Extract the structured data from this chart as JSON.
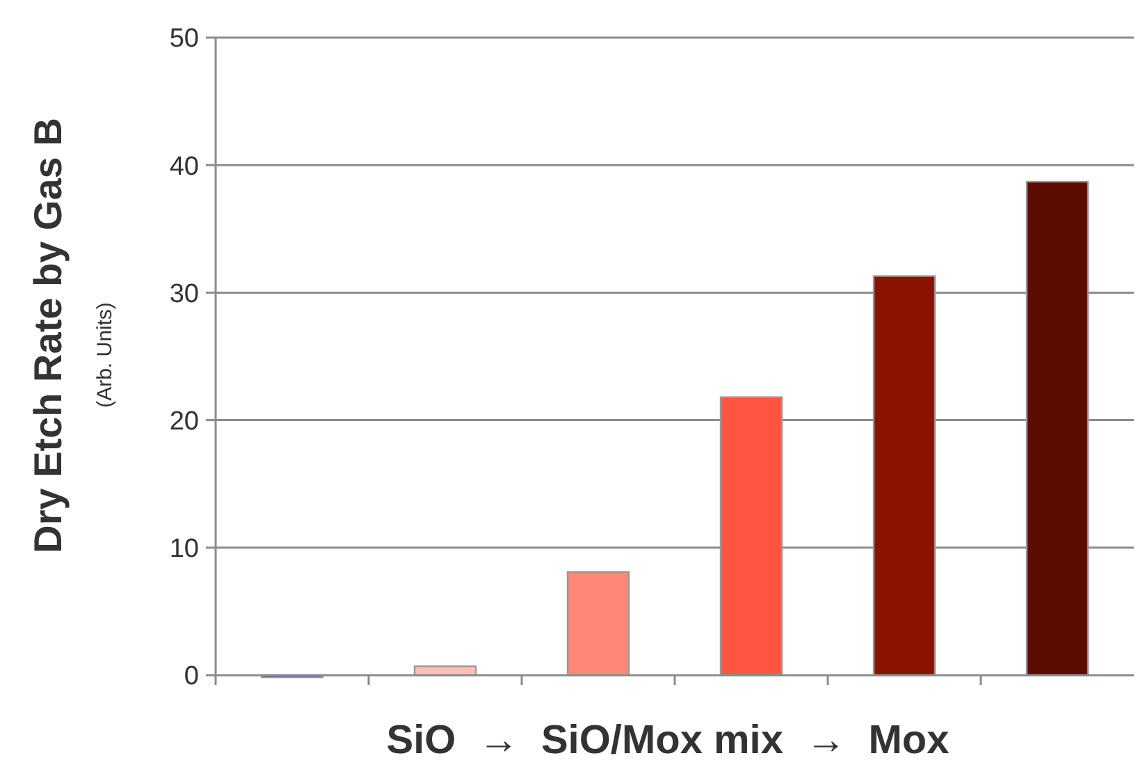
{
  "chart_data": {
    "type": "bar",
    "xlabel": "SiO  →  SiO/Mox mix  →  Mox",
    "ylabel": "Dry Etch Rate by Gas B",
    "annotations": [
      "(Arb. Units)"
    ],
    "categories": [
      null,
      null,
      null,
      null,
      null,
      null
    ],
    "values": [
      0,
      0.7,
      8.1,
      21.8,
      31.3,
      38.7
    ],
    "colors": [
      "#0000cc",
      "#ffc0b8",
      "#ff8878",
      "#ff5540",
      "#8a1200",
      "#5c0b00"
    ],
    "ylim": [
      0,
      50
    ],
    "yticks": [
      0,
      10,
      20,
      30,
      40,
      50
    ],
    "grid": "y"
  }
}
